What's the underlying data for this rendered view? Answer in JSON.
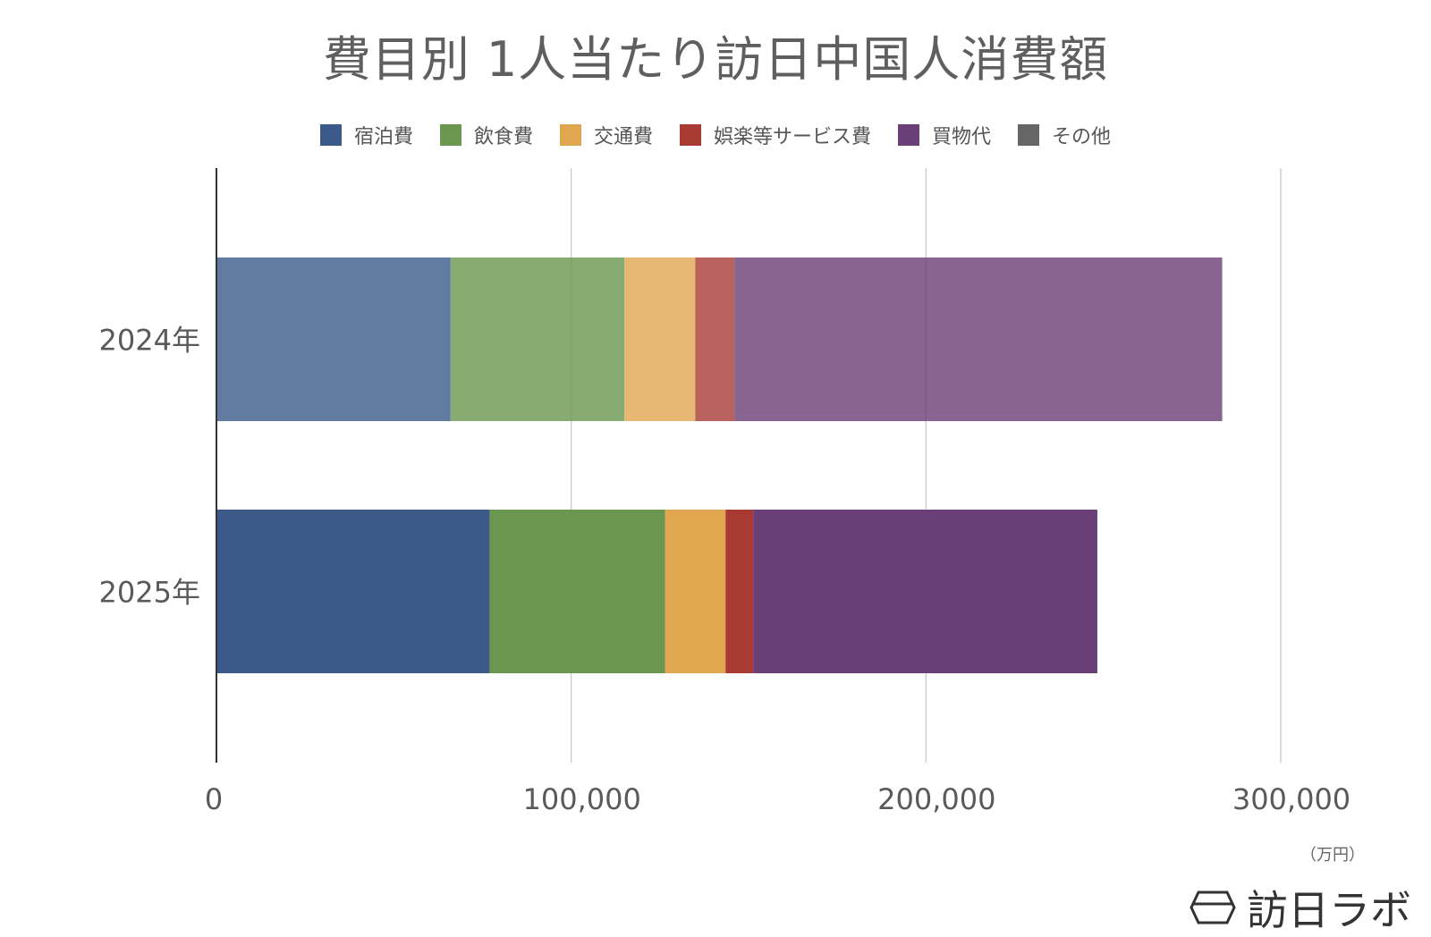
{
  "chart_data": {
    "type": "bar",
    "orientation": "horizontal",
    "stacked": true,
    "title": "費目別 1人当たり訪日中国人消費額",
    "categories": [
      "2024年",
      "2025年"
    ],
    "series": [
      {
        "name": "宿泊費",
        "color": "#3b5a8a",
        "values": [
          66000,
          77000
        ]
      },
      {
        "name": "飲食費",
        "color": "#6a9650",
        "values": [
          49000,
          49500
        ]
      },
      {
        "name": "交通費",
        "color": "#e0a650",
        "values": [
          20000,
          17000
        ]
      },
      {
        "name": "娯楽等サービス費",
        "color": "#a83a33",
        "values": [
          11000,
          7800
        ]
      },
      {
        "name": "買物代",
        "color": "#6a3e76",
        "values": [
          137500,
          97000
        ]
      },
      {
        "name": "その他",
        "color": "#666666",
        "values": [
          0,
          0
        ]
      }
    ],
    "faded_categories": [
      "2024年"
    ],
    "xlim": [
      0,
      300000
    ],
    "xticks": [
      0,
      100000,
      200000,
      300000
    ],
    "xtick_labels": [
      "0",
      "100,000",
      "200,000",
      "300,000"
    ],
    "unit": "（万円）",
    "grid": true,
    "legend": "top"
  },
  "brand": {
    "name": "訪日ラボ",
    "icon": "brand-logo-icon"
  }
}
